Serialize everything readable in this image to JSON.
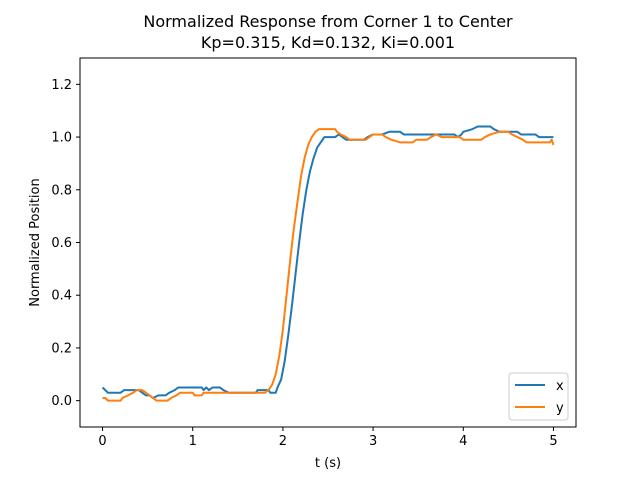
{
  "chart_data": {
    "type": "line",
    "title_line1": "Normalized Response from Corner 1 to Center",
    "title_line2": "Kp=0.315, Kd=0.132, Ki=0.001",
    "xlabel": "t (s)",
    "ylabel": "Normalized Position",
    "xlim": [
      -0.25,
      5.25
    ],
    "ylim": [
      -0.1,
      1.3
    ],
    "xticks": [
      0,
      1,
      2,
      3,
      4,
      5
    ],
    "xtick_labels": [
      "0",
      "1",
      "2",
      "3",
      "4",
      "5"
    ],
    "yticks": [
      0.0,
      0.2,
      0.4,
      0.6,
      0.8,
      1.0,
      1.2
    ],
    "ytick_labels": [
      "0.0",
      "0.2",
      "0.4",
      "0.6",
      "0.8",
      "1.0",
      "1.2"
    ],
    "grid": false,
    "legend_position": "lower-right",
    "series": [
      {
        "name": "x",
        "color": "#1f77b4",
        "points": [
          [
            0.0,
            0.05
          ],
          [
            0.03,
            0.04
          ],
          [
            0.06,
            0.03
          ],
          [
            0.2,
            0.03
          ],
          [
            0.24,
            0.04
          ],
          [
            0.4,
            0.04
          ],
          [
            0.44,
            0.03
          ],
          [
            0.48,
            0.02
          ],
          [
            0.52,
            0.02
          ],
          [
            0.56,
            0.01
          ],
          [
            0.62,
            0.02
          ],
          [
            0.7,
            0.02
          ],
          [
            0.74,
            0.03
          ],
          [
            0.8,
            0.04
          ],
          [
            0.84,
            0.05
          ],
          [
            1.1,
            0.05
          ],
          [
            1.12,
            0.04
          ],
          [
            1.15,
            0.05
          ],
          [
            1.18,
            0.04
          ],
          [
            1.22,
            0.05
          ],
          [
            1.3,
            0.05
          ],
          [
            1.34,
            0.04
          ],
          [
            1.4,
            0.03
          ],
          [
            1.7,
            0.03
          ],
          [
            1.72,
            0.04
          ],
          [
            1.84,
            0.04
          ],
          [
            1.86,
            0.03
          ],
          [
            1.92,
            0.03
          ],
          [
            1.94,
            0.05
          ],
          [
            1.98,
            0.08
          ],
          [
            2.02,
            0.15
          ],
          [
            2.06,
            0.25
          ],
          [
            2.1,
            0.36
          ],
          [
            2.14,
            0.48
          ],
          [
            2.18,
            0.6
          ],
          [
            2.22,
            0.71
          ],
          [
            2.26,
            0.8
          ],
          [
            2.3,
            0.87
          ],
          [
            2.34,
            0.92
          ],
          [
            2.38,
            0.96
          ],
          [
            2.42,
            0.98
          ],
          [
            2.46,
            1.0
          ],
          [
            2.58,
            1.0
          ],
          [
            2.62,
            1.01
          ],
          [
            2.66,
            1.0
          ],
          [
            2.7,
            0.99
          ],
          [
            2.9,
            0.99
          ],
          [
            2.94,
            1.0
          ],
          [
            3.0,
            1.01
          ],
          [
            3.1,
            1.01
          ],
          [
            3.18,
            1.02
          ],
          [
            3.3,
            1.02
          ],
          [
            3.34,
            1.01
          ],
          [
            3.9,
            1.01
          ],
          [
            3.94,
            1.0
          ],
          [
            3.98,
            1.01
          ],
          [
            4.0,
            1.02
          ],
          [
            4.1,
            1.03
          ],
          [
            4.16,
            1.04
          ],
          [
            4.3,
            1.04
          ],
          [
            4.34,
            1.03
          ],
          [
            4.4,
            1.02
          ],
          [
            4.6,
            1.02
          ],
          [
            4.64,
            1.01
          ],
          [
            4.8,
            1.01
          ],
          [
            4.84,
            1.0
          ],
          [
            5.0,
            1.0
          ]
        ]
      },
      {
        "name": "y",
        "color": "#ff7f0e",
        "points": [
          [
            0.0,
            0.01
          ],
          [
            0.03,
            0.01
          ],
          [
            0.06,
            0.0
          ],
          [
            0.2,
            0.0
          ],
          [
            0.22,
            0.01
          ],
          [
            0.28,
            0.02
          ],
          [
            0.34,
            0.03
          ],
          [
            0.38,
            0.04
          ],
          [
            0.44,
            0.04
          ],
          [
            0.48,
            0.03
          ],
          [
            0.52,
            0.02
          ],
          [
            0.56,
            0.01
          ],
          [
            0.6,
            0.0
          ],
          [
            0.72,
            0.0
          ],
          [
            0.76,
            0.01
          ],
          [
            0.82,
            0.02
          ],
          [
            0.86,
            0.03
          ],
          [
            1.0,
            0.03
          ],
          [
            1.02,
            0.02
          ],
          [
            1.1,
            0.02
          ],
          [
            1.12,
            0.03
          ],
          [
            1.8,
            0.03
          ],
          [
            1.84,
            0.04
          ],
          [
            1.88,
            0.06
          ],
          [
            1.92,
            0.1
          ],
          [
            1.96,
            0.17
          ],
          [
            2.0,
            0.27
          ],
          [
            2.04,
            0.4
          ],
          [
            2.08,
            0.53
          ],
          [
            2.12,
            0.65
          ],
          [
            2.16,
            0.75
          ],
          [
            2.2,
            0.85
          ],
          [
            2.24,
            0.92
          ],
          [
            2.28,
            0.97
          ],
          [
            2.32,
            1.0
          ],
          [
            2.36,
            1.02
          ],
          [
            2.4,
            1.03
          ],
          [
            2.58,
            1.03
          ],
          [
            2.6,
            1.02
          ],
          [
            2.64,
            1.01
          ],
          [
            2.7,
            1.0
          ],
          [
            2.74,
            0.99
          ],
          [
            2.92,
            0.99
          ],
          [
            2.96,
            1.0
          ],
          [
            3.0,
            1.01
          ],
          [
            3.1,
            1.01
          ],
          [
            3.14,
            1.0
          ],
          [
            3.2,
            0.99
          ],
          [
            3.3,
            0.98
          ],
          [
            3.44,
            0.98
          ],
          [
            3.48,
            0.99
          ],
          [
            3.6,
            0.99
          ],
          [
            3.64,
            1.0
          ],
          [
            3.7,
            1.01
          ],
          [
            3.76,
            1.0
          ],
          [
            3.96,
            1.0
          ],
          [
            4.0,
            0.99
          ],
          [
            4.2,
            0.99
          ],
          [
            4.24,
            1.0
          ],
          [
            4.3,
            1.01
          ],
          [
            4.4,
            1.02
          ],
          [
            4.5,
            1.02
          ],
          [
            4.54,
            1.01
          ],
          [
            4.6,
            1.0
          ],
          [
            4.66,
            0.99
          ],
          [
            4.7,
            0.98
          ],
          [
            4.96,
            0.98
          ],
          [
            4.98,
            0.99
          ],
          [
            5.0,
            0.97
          ]
        ]
      }
    ]
  }
}
